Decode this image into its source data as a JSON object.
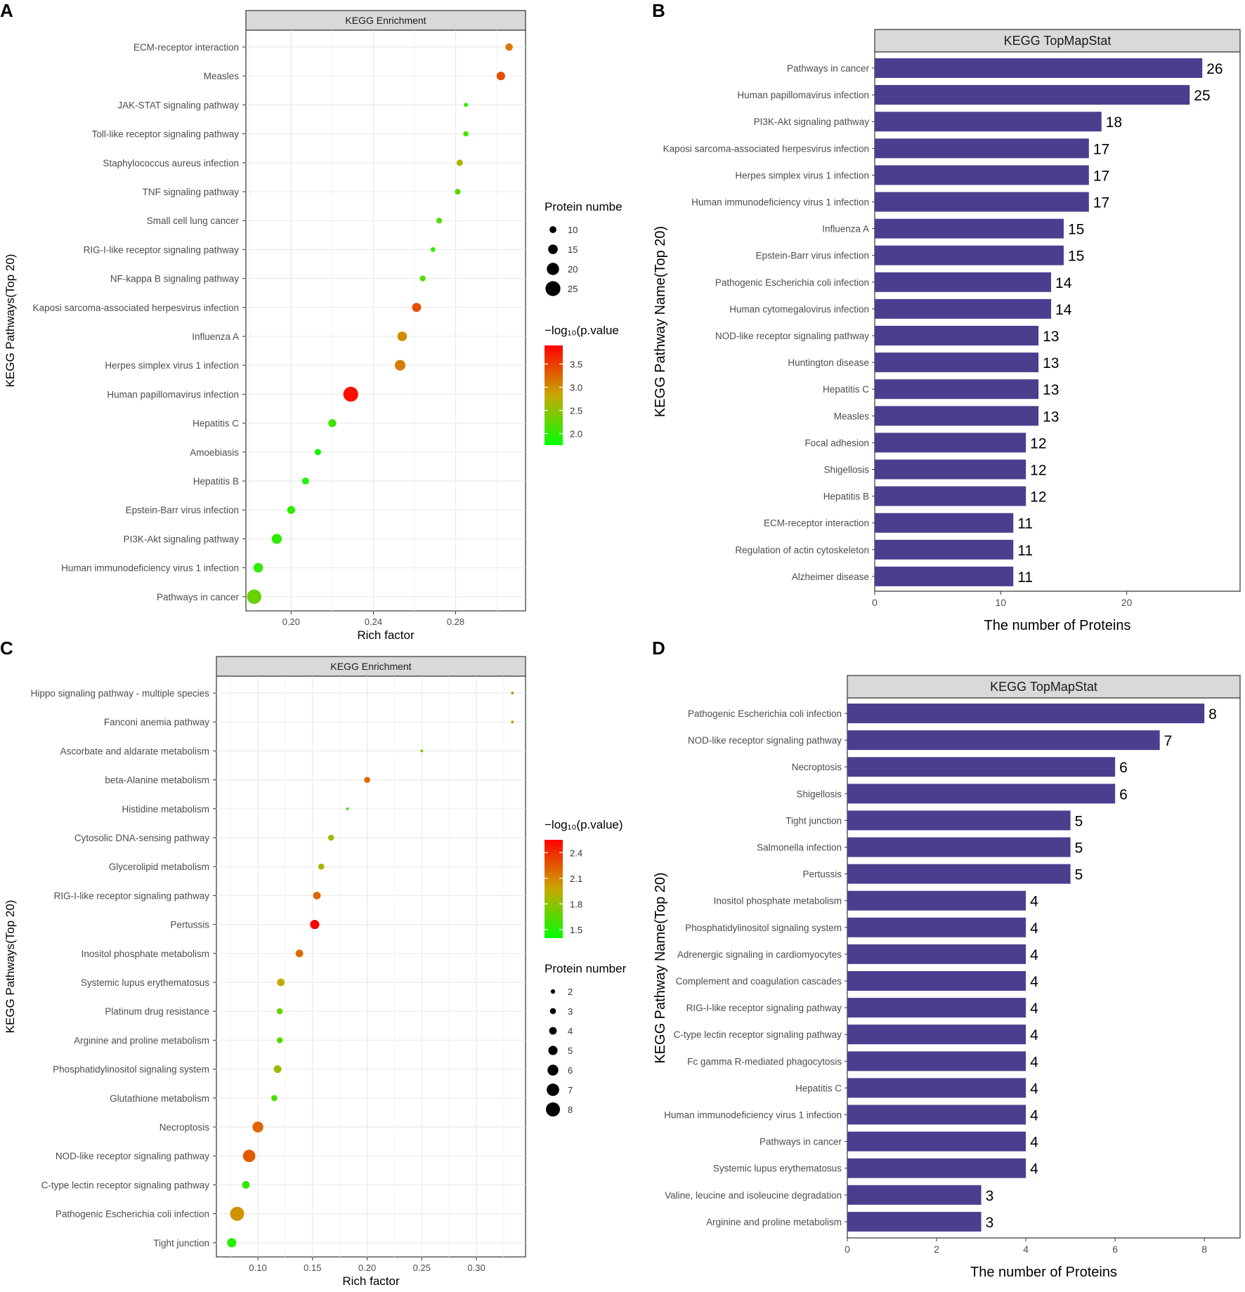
{
  "colors": {
    "bar": "#4A3F8F",
    "panel_strip": "#D9D9D9",
    "grid": "#EBEBEB",
    "gradient_low": "#00FF00",
    "gradient_mid": "#C8A800",
    "gradient_high": "#FF0000"
  },
  "chart_data": [
    {
      "panel_letter": "A",
      "type": "scatter",
      "title": "KEGG Enrichment",
      "xlabel": "Rich factor",
      "ylabel": "KEGG Pathways(Top 20)",
      "xlim": [
        0.178,
        0.314
      ],
      "xticks": [
        0.2,
        0.24,
        0.28
      ],
      "xtick_labels": [
        "0.20",
        "0.24",
        "0.28"
      ],
      "size_legend_title": "Protein numbe",
      "size_legend_values": [
        10,
        15,
        20,
        25
      ],
      "size_legend_labels": [
        "10",
        "15",
        "20",
        "25"
      ],
      "color_legend_title": "−log₁₀(p.value",
      "color_range": [
        1.75,
        3.9
      ],
      "color_ticks": [
        2.0,
        2.5,
        3.0,
        3.5
      ],
      "color_tick_labels": [
        "2.0",
        "2.5",
        "3.0",
        "3.5"
      ],
      "size_range": [
        5,
        26
      ],
      "size_pixel_range": [
        3,
        11
      ],
      "categories": [
        "ECM-receptor interaction",
        "Measles",
        "JAK-STAT signaling pathway",
        "Toll-like receptor signaling pathway",
        "Staphylococcus aureus infection",
        "TNF signaling pathway",
        "Small cell lung cancer",
        "RIG-I-like receptor signaling pathway",
        "NF-kappa B signaling pathway",
        "Kaposi sarcoma-associated herpesvirus infection",
        "Influenza A",
        "Herpes simplex virus 1 infection",
        "Human papillomavirus infection",
        "Hepatitis C",
        "Amoebiasis",
        "Hepatitis B",
        "Epstein-Barr virus infection",
        "PI3K-Akt signaling pathway",
        "Human immunodeficiency virus 1 infection",
        "Pathways in cancer"
      ],
      "x": [
        0.306,
        0.302,
        0.285,
        0.285,
        0.282,
        0.281,
        0.272,
        0.269,
        0.264,
        0.261,
        0.254,
        0.253,
        0.229,
        0.22,
        0.213,
        0.207,
        0.2,
        0.193,
        0.184,
        0.182
      ],
      "size": [
        11,
        13,
        5,
        7,
        9,
        8,
        8,
        6,
        8,
        14,
        15,
        17,
        25,
        12,
        9,
        10,
        12,
        16,
        15,
        24
      ],
      "color": [
        3.1,
        3.4,
        2.0,
        2.1,
        2.7,
        2.2,
        2.2,
        2.0,
        2.2,
        3.4,
        3.0,
        3.1,
        3.8,
        2.1,
        1.85,
        1.9,
        2.0,
        2.0,
        2.0,
        2.3
      ]
    },
    {
      "panel_letter": "B",
      "type": "bar",
      "orientation": "horizontal",
      "title": "KEGG TopMapStat",
      "xlabel": "The number of Proteins",
      "ylabel": "KEGG Pathway Name(Top 20)",
      "xlim": [
        0,
        29
      ],
      "xticks": [
        0,
        10,
        20
      ],
      "xtick_labels": [
        "0",
        "10",
        "20"
      ],
      "categories": [
        "Pathways in cancer",
        "Human papillomavirus infection",
        "PI3K-Akt signaling pathway",
        "Kaposi sarcoma-associated herpesvirus infection",
        "Herpes simplex virus 1 infection",
        "Human immunodeficiency virus 1 infection",
        "Influenza A",
        "Epstein-Barr virus infection",
        "Pathogenic Escherichia coli infection",
        "Human cytomegalovirus infection",
        "NOD-like receptor signaling pathway",
        "Huntington disease",
        "Hepatitis C",
        "Measles",
        "Focal adhesion",
        "Shigellosis",
        "Hepatitis B",
        "ECM-receptor interaction",
        "Regulation of actin cytoskeleton",
        "Alzheimer disease"
      ],
      "values": [
        26,
        25,
        18,
        17,
        17,
        17,
        15,
        15,
        14,
        14,
        13,
        13,
        13,
        13,
        12,
        12,
        12,
        11,
        11,
        11
      ],
      "value_labels": [
        "26",
        "25",
        "18",
        "17",
        "17",
        "17",
        "15",
        "15",
        "14",
        "14",
        "13",
        "13",
        "13",
        "13",
        "12",
        "12",
        "12",
        "11",
        "11",
        "11"
      ]
    },
    {
      "panel_letter": "C",
      "type": "scatter",
      "title": "KEGG Enrichment",
      "xlabel": "Rich factor",
      "ylabel": "KEGG Pathways(Top 20)",
      "xlim": [
        0.062,
        0.345
      ],
      "xticks": [
        0.1,
        0.15,
        0.2,
        0.25,
        0.3
      ],
      "xtick_labels": [
        "0.10",
        "0.15",
        "0.20",
        "0.25",
        "0.30"
      ],
      "size_legend_title": "Protein number",
      "size_legend_values": [
        2,
        3,
        4,
        5,
        6,
        7,
        8
      ],
      "size_legend_labels": [
        "2",
        "3",
        "4",
        "5",
        "6",
        "7",
        "8"
      ],
      "color_legend_title": "−log₁₀(p.value)",
      "color_range": [
        1.4,
        2.55
      ],
      "color_ticks": [
        1.5,
        1.8,
        2.1,
        2.4
      ],
      "color_tick_labels": [
        "1.5",
        "1.8",
        "2.1",
        "2.4"
      ],
      "size_range": [
        1,
        8
      ],
      "size_pixel_range": [
        2,
        10
      ],
      "categories": [
        "Hippo signaling pathway - multiple species",
        "Fanconi anemia pathway",
        "Ascorbate and aldarate metabolism",
        "beta-Alanine metabolism",
        "Histidine metabolism",
        "Cytosolic DNA-sensing pathway",
        "Glycerolipid metabolism",
        "RIG-I-like receptor signaling pathway",
        "Pertussis",
        "Inositol phosphate metabolism",
        "Systemic lupus erythematosus",
        "Platinum drug resistance",
        "Arginine and proline metabolism",
        "Phosphatidylinositol signaling system",
        "Glutathione metabolism",
        "Necroptosis",
        "NOD-like receptor signaling pathway",
        "C-type lectin receptor signaling pathway",
        "Pathogenic Escherichia coli infection",
        "Tight junction"
      ],
      "x": [
        0.333,
        0.333,
        0.25,
        0.2,
        0.182,
        0.167,
        0.158,
        0.154,
        0.152,
        0.138,
        0.121,
        0.12,
        0.12,
        0.118,
        0.115,
        0.1,
        0.092,
        0.089,
        0.081,
        0.076
      ],
      "size": [
        1,
        1,
        1,
        3,
        1,
        3,
        3,
        4,
        5,
        4,
        4,
        3,
        3,
        4,
        3,
        6,
        7,
        4,
        8,
        5
      ],
      "color": [
        2.05,
        2.05,
        1.75,
        2.2,
        1.55,
        1.85,
        1.9,
        2.2,
        2.55,
        2.2,
        1.95,
        1.7,
        1.65,
        1.85,
        1.6,
        2.2,
        2.25,
        1.55,
        2.05,
        1.5
      ]
    },
    {
      "panel_letter": "D",
      "type": "bar",
      "orientation": "horizontal",
      "title": "KEGG TopMapStat",
      "xlabel": "The number of Proteins",
      "ylabel": "KEGG Pathway Name(Top 20)",
      "xlim": [
        0,
        8.8
      ],
      "xticks": [
        0,
        2,
        4,
        6,
        8
      ],
      "xtick_labels": [
        "0",
        "2",
        "4",
        "6",
        "8"
      ],
      "categories": [
        "Pathogenic Escherichia coli infection",
        "NOD-like receptor signaling pathway",
        "Necroptosis",
        "Shigellosis",
        "Tight junction",
        "Salmonella infection",
        "Pertussis",
        "Inositol phosphate metabolism",
        "Phosphatidylinositol signaling system",
        "Adrenergic signaling in cardiomyocytes",
        "Complement and coagulation cascades",
        "RIG-I-like receptor signaling pathway",
        "C-type lectin receptor signaling pathway",
        "Fc gamma R-mediated phagocytosis",
        "Hepatitis C",
        "Human immunodeficiency virus 1 infection",
        "Pathways in cancer",
        "Systemic lupus erythematosus",
        "Valine, leucine and isoleucine degradation",
        "Arginine and proline metabolism"
      ],
      "values": [
        8,
        7,
        6,
        6,
        5,
        5,
        5,
        4,
        4,
        4,
        4,
        4,
        4,
        4,
        4,
        4,
        4,
        4,
        3,
        3
      ],
      "value_labels": [
        "8",
        "7",
        "6",
        "6",
        "5",
        "5",
        "5",
        "4",
        "4",
        "4",
        "4",
        "4",
        "4",
        "4",
        "4",
        "4",
        "4",
        "4",
        "3",
        "3"
      ]
    }
  ]
}
